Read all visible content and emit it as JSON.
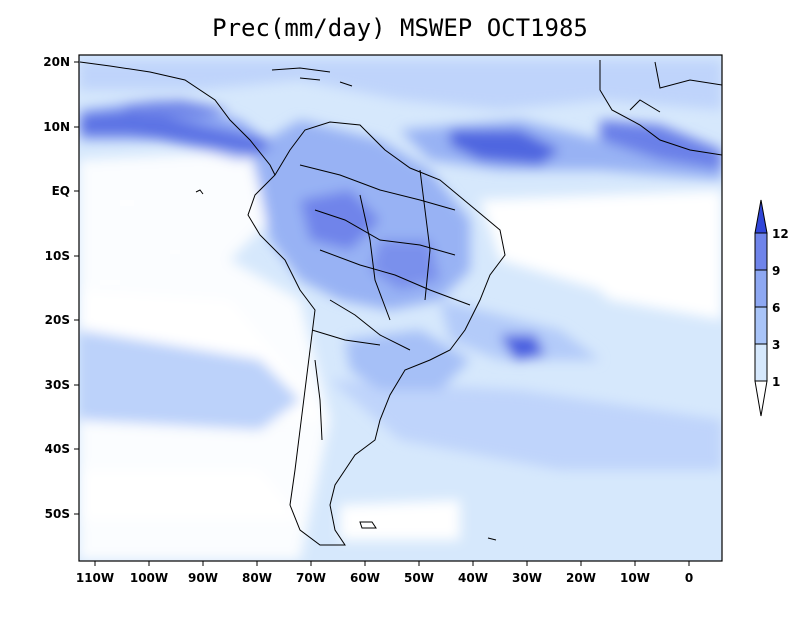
{
  "title": "Prec(mm/day) MSWEP OCT1985",
  "lat_labels": [
    "20N",
    "10N",
    "EQ",
    "10S",
    "20S",
    "30S",
    "40S",
    "50S"
  ],
  "lon_labels": [
    "110W",
    "100W",
    "90W",
    "80W",
    "70W",
    "60W",
    "50W",
    "40W",
    "30W",
    "20W",
    "10W",
    "0"
  ],
  "legend": {
    "levels": [
      "1",
      "3",
      "6",
      "9",
      "12"
    ],
    "colors": [
      "#ffffff",
      "#d6e8fc",
      "#a9c4f8",
      "#8ea8f2",
      "#6f84ea",
      "#4a5fe0",
      "#3146d8"
    ]
  }
}
